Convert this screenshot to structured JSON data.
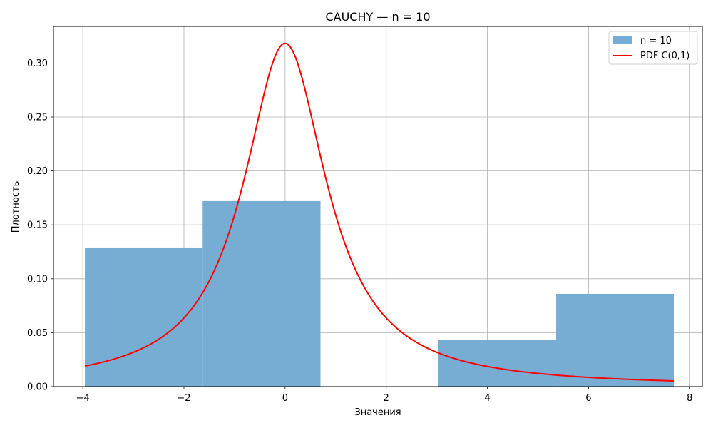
{
  "chart_data": {
    "type": "bar",
    "title": "CAUCHY — n = 10",
    "xlabel": "Значения",
    "ylabel": "Плотность",
    "xlim": [
      -4.58,
      8.25
    ],
    "ylim": [
      0,
      0.334
    ],
    "xticks": [
      -4,
      -2,
      0,
      2,
      4,
      6,
      8
    ],
    "xtick_labels": [
      "−4",
      "−2",
      "0",
      "2",
      "4",
      "6",
      "8"
    ],
    "yticks": [
      0,
      0.05,
      0.1,
      0.15,
      0.2,
      0.25,
      0.3
    ],
    "ytick_labels": [
      "0.00",
      "0.05",
      "0.10",
      "0.15",
      "0.20",
      "0.25",
      "0.30"
    ],
    "grid": true,
    "legend_position": "top-right",
    "histogram": {
      "name": "n = 10",
      "color": "#77acd3",
      "bins": [
        {
          "x0": -3.96,
          "x1": -1.63,
          "density": 0.129
        },
        {
          "x0": -1.63,
          "x1": 0.7,
          "density": 0.172
        },
        {
          "x0": 0.7,
          "x1": 3.03,
          "density": 0.0
        },
        {
          "x0": 3.03,
          "x1": 5.36,
          "density": 0.043
        },
        {
          "x0": 5.36,
          "x1": 7.69,
          "density": 0.086
        }
      ]
    },
    "curve": {
      "name": "PDF C(0,1)",
      "color": "#ff0000",
      "distribution": "cauchy",
      "location": 0,
      "scale": 1,
      "x_range": [
        -3.96,
        7.69
      ]
    }
  }
}
